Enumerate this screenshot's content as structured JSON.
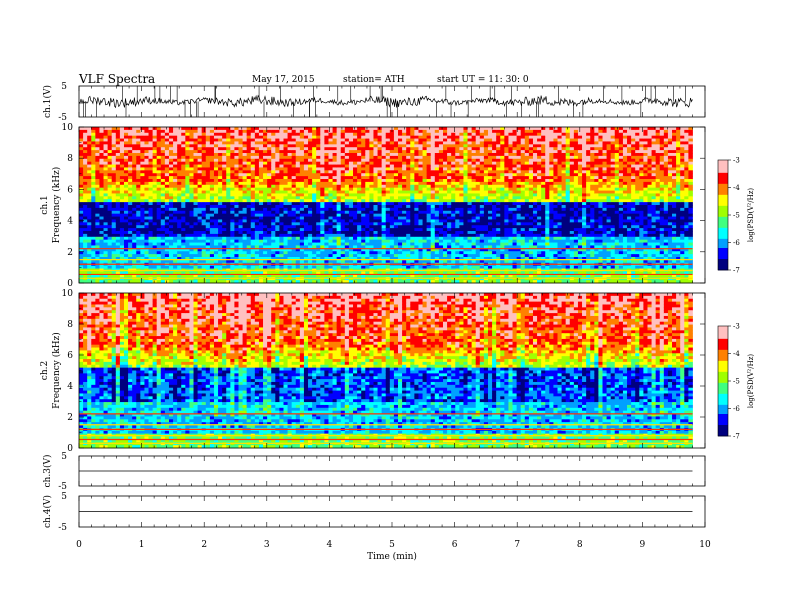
{
  "header": {
    "title": "VLF  Spectra",
    "date": "May 17, 2015",
    "station": "station= ATH",
    "start": "start  UT  =   11: 30: 0"
  },
  "colors": {
    "background": "#ffffff",
    "axes": "#000000",
    "colormap": [
      "#00007f",
      "#0000ff",
      "#00a0ff",
      "#00ffff",
      "#40ff80",
      "#a0ff00",
      "#ffff00",
      "#ff8000",
      "#ff0000",
      "#ffc0c0"
    ]
  },
  "chart_data": [
    {
      "type": "line",
      "panel": "ch1-waveform",
      "ylabel": "ch.1(V)",
      "yticks": [
        "5",
        "-5"
      ],
      "ylim": [
        -5,
        5
      ],
      "xlim": [
        0,
        10
      ],
      "description_level": 0.0
    },
    {
      "type": "heatmap",
      "panel": "ch1-spectrogram",
      "ylabel_top": "ch.1",
      "ylabel": "Frequency  (kHz)",
      "yticks": [
        "0",
        "2",
        "4",
        "6",
        "8",
        "10"
      ],
      "ylim": [
        0,
        10
      ],
      "xlim": [
        0,
        10
      ],
      "data_end_min": 9.8,
      "colorbar": {
        "label": "log(PSD(V²/Hz)",
        "ticks": [
          "-3",
          "-4",
          "-5",
          "-6",
          "-7"
        ],
        "range": [
          -7,
          -3
        ]
      }
    },
    {
      "type": "heatmap",
      "panel": "ch2-spectrogram",
      "ylabel_top": "ch.2",
      "ylabel": "Frequency  (kHz)",
      "yticks": [
        "0",
        "2",
        "4",
        "6",
        "8",
        "10"
      ],
      "ylim": [
        0,
        10
      ],
      "xlim": [
        0,
        10
      ],
      "data_end_min": 9.8,
      "colorbar": {
        "label": "log(PSD(V²/Hz)",
        "ticks": [
          "-3",
          "-4",
          "-5",
          "-6",
          "-7"
        ],
        "range": [
          -7,
          -3
        ]
      }
    },
    {
      "type": "line",
      "panel": "ch3-waveform",
      "ylabel": "ch.3(V)",
      "yticks": [
        "5",
        "-5"
      ],
      "ylim": [
        -5,
        5
      ],
      "xlim": [
        0,
        10
      ],
      "description_level": 0.0
    },
    {
      "type": "line",
      "panel": "ch4-waveform",
      "ylabel": "ch.4(V)",
      "yticks": [
        "5",
        "-5"
      ],
      "ylim": [
        -5,
        5
      ],
      "xlim": [
        0,
        10
      ],
      "description_level": 0.0
    }
  ],
  "xaxis": {
    "label": "Time  (min)",
    "ticks": [
      "0",
      "1",
      "2",
      "3",
      "4",
      "5",
      "6",
      "7",
      "8",
      "9",
      "10"
    ],
    "range": [
      0,
      10
    ]
  }
}
